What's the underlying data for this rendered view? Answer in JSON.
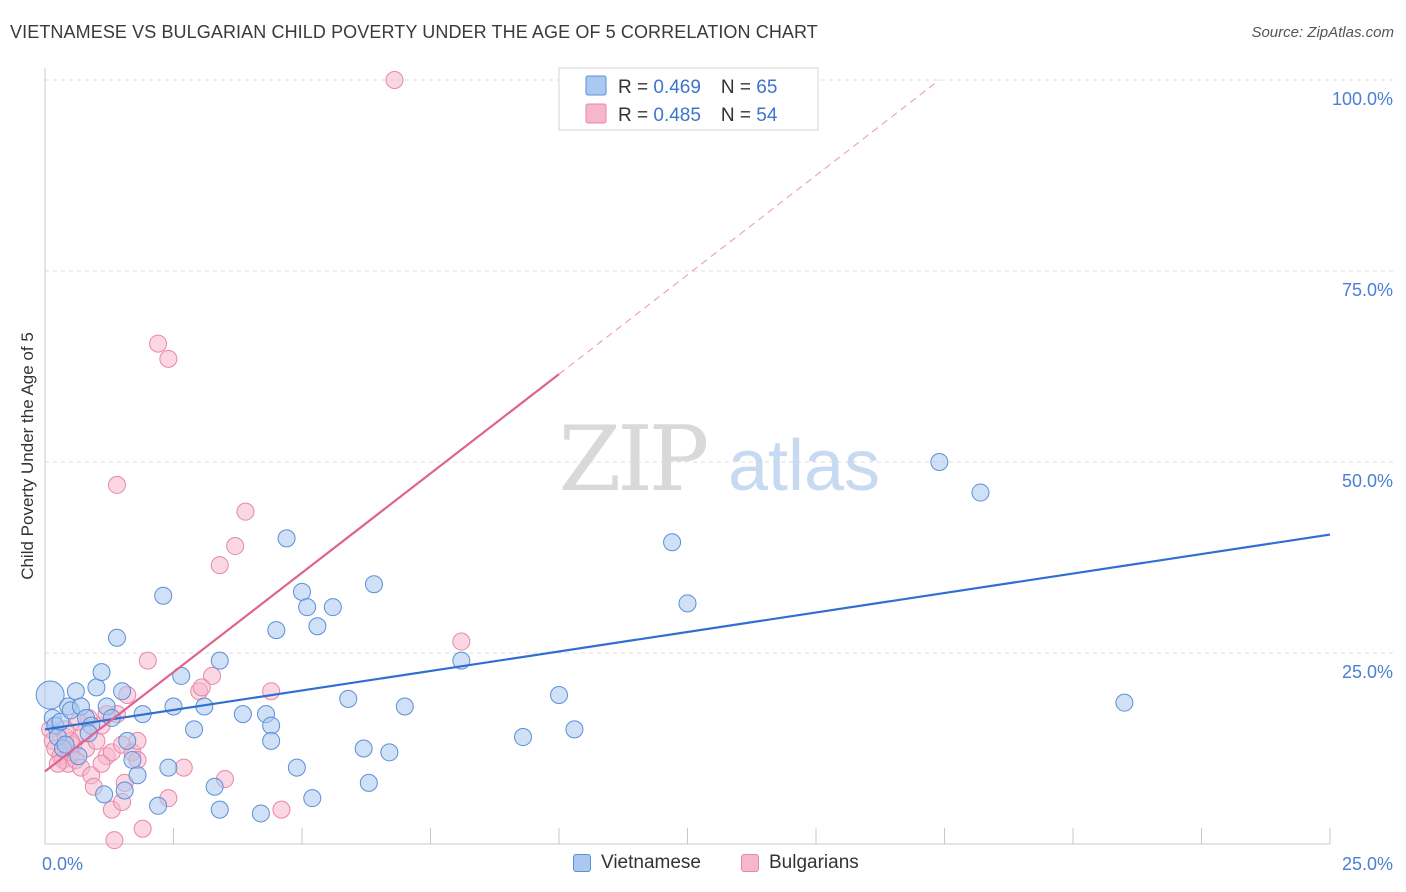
{
  "header": {
    "title": "VIETNAMESE VS BULGARIAN CHILD POVERTY UNDER THE AGE OF 5 CORRELATION CHART",
    "source": "Source: ZipAtlas.com"
  },
  "watermark": {
    "zip": "ZIP",
    "atlas": "atlas"
  },
  "colors": {
    "blue_fill": "#aac8f0",
    "blue_stroke": "#5b8fd6",
    "blue_line": "#2f6fd1",
    "pink_fill": "#f6b7cc",
    "pink_stroke": "#e887a7",
    "pink_line": "#e0628e",
    "tick_text": "#4a7fd4",
    "grid": "#dcdcdc"
  },
  "legend": {
    "rows": [
      {
        "r_label": "R = ",
        "r_value": "0.469",
        "n_label": "N = ",
        "n_value": "65"
      },
      {
        "r_label": "R = ",
        "r_value": "0.485",
        "n_label": "N = ",
        "n_value": "54"
      }
    ]
  },
  "bottom_legend": {
    "vietnamese": "Vietnamese",
    "bulgarians": "Bulgarians"
  },
  "chart_data": {
    "type": "scatter",
    "title": "VIETNAMESE VS BULGARIAN CHILD POVERTY UNDER THE AGE OF 5 CORRELATION CHART",
    "xlabel": "",
    "ylabel": "Child Poverty Under the Age of 5",
    "xlim": [
      0,
      25
    ],
    "ylim": [
      0,
      100
    ],
    "x_tick_labels": [
      "0.0%",
      "25.0%"
    ],
    "y_tick_labels": [
      "100.0%",
      "75.0%",
      "50.0%",
      "25.0%"
    ],
    "y_ticks": [
      100,
      75,
      50,
      25
    ],
    "grid": true,
    "legend_position": "top-center",
    "series": [
      {
        "name": "Vietnamese",
        "color": "#5b8fd6",
        "R": 0.469,
        "N": 65,
        "trend": {
          "x": [
            0,
            25
          ],
          "y": [
            15,
            40.5
          ]
        },
        "points": [
          [
            0.1,
            19.5
          ],
          [
            0.15,
            16.5
          ],
          [
            0.2,
            15.5
          ],
          [
            0.25,
            14.0
          ],
          [
            0.3,
            16.0
          ],
          [
            0.35,
            12.5
          ],
          [
            0.4,
            13.0
          ],
          [
            0.45,
            18.0
          ],
          [
            0.5,
            17.5
          ],
          [
            0.6,
            20.0
          ],
          [
            0.7,
            18.0
          ],
          [
            0.8,
            16.5
          ],
          [
            0.9,
            15.5
          ],
          [
            1.0,
            20.5
          ],
          [
            1.1,
            22.5
          ],
          [
            1.2,
            18.0
          ],
          [
            1.3,
            16.5
          ],
          [
            1.4,
            27.0
          ],
          [
            1.5,
            20.0
          ],
          [
            1.6,
            13.5
          ],
          [
            1.7,
            11.0
          ],
          [
            1.8,
            9.0
          ],
          [
            1.9,
            17.0
          ],
          [
            2.3,
            32.5
          ],
          [
            2.5,
            18.0
          ],
          [
            2.65,
            22.0
          ],
          [
            2.9,
            15.0
          ],
          [
            3.1,
            18.0
          ],
          [
            3.4,
            24.0
          ],
          [
            3.85,
            17.0
          ],
          [
            4.3,
            17.0
          ],
          [
            4.4,
            15.5
          ],
          [
            4.5,
            28.0
          ],
          [
            4.7,
            40.0
          ],
          [
            4.9,
            10.0
          ],
          [
            5.0,
            33.0
          ],
          [
            5.1,
            31.0
          ],
          [
            5.3,
            28.5
          ],
          [
            5.6,
            31.0
          ],
          [
            5.9,
            19.0
          ],
          [
            6.4,
            34.0
          ],
          [
            6.2,
            12.5
          ],
          [
            6.7,
            12.0
          ],
          [
            6.3,
            8.0
          ],
          [
            7.0,
            18.0
          ],
          [
            8.1,
            24.0
          ],
          [
            9.3,
            14.0
          ],
          [
            10.0,
            19.5
          ],
          [
            10.3,
            15.0
          ],
          [
            12.2,
            39.5
          ],
          [
            12.5,
            31.5
          ],
          [
            17.4,
            50.0
          ],
          [
            18.2,
            46.0
          ],
          [
            21.0,
            18.5
          ],
          [
            0.65,
            11.5
          ],
          [
            1.15,
            6.5
          ],
          [
            2.2,
            5.0
          ],
          [
            3.3,
            7.5
          ],
          [
            3.4,
            4.5
          ],
          [
            4.2,
            4.0
          ],
          [
            5.2,
            6.0
          ],
          [
            1.55,
            7.0
          ],
          [
            4.4,
            13.5
          ],
          [
            2.4,
            10.0
          ],
          [
            0.85,
            14.5
          ]
        ]
      },
      {
        "name": "Bulgarians",
        "color": "#e887a7",
        "R": 0.485,
        "N": 54,
        "trend": {
          "x": [
            0,
            10
          ],
          "y": [
            9.5,
            61.5
          ]
        },
        "trend_dashed": {
          "x": [
            10,
            17.4
          ],
          "y": [
            61.5,
            100
          ]
        },
        "points": [
          [
            0.1,
            15.0
          ],
          [
            0.15,
            13.5
          ],
          [
            0.2,
            12.5
          ],
          [
            0.3,
            11.5
          ],
          [
            0.35,
            11.0
          ],
          [
            0.4,
            14.0
          ],
          [
            0.45,
            10.5
          ],
          [
            0.5,
            12.0
          ],
          [
            0.55,
            13.0
          ],
          [
            0.6,
            11.0
          ],
          [
            0.7,
            10.0
          ],
          [
            0.75,
            14.5
          ],
          [
            0.8,
            12.5
          ],
          [
            0.85,
            16.5
          ],
          [
            0.9,
            9.0
          ],
          [
            1.0,
            13.5
          ],
          [
            1.1,
            15.5
          ],
          [
            1.2,
            11.5
          ],
          [
            1.3,
            12.0
          ],
          [
            1.4,
            17.0
          ],
          [
            1.5,
            13.0
          ],
          [
            1.6,
            19.5
          ],
          [
            1.7,
            12.0
          ],
          [
            1.8,
            11.0
          ],
          [
            1.4,
            47.0
          ],
          [
            2.2,
            65.5
          ],
          [
            2.4,
            63.5
          ],
          [
            2.0,
            24.0
          ],
          [
            2.7,
            10.0
          ],
          [
            3.0,
            20.0
          ],
          [
            3.25,
            22.0
          ],
          [
            3.4,
            36.5
          ],
          [
            3.5,
            8.5
          ],
          [
            3.7,
            39.0
          ],
          [
            3.9,
            43.5
          ],
          [
            4.4,
            20.0
          ],
          [
            4.6,
            4.5
          ],
          [
            8.1,
            26.5
          ],
          [
            6.8,
            100.0
          ],
          [
            1.3,
            4.5
          ],
          [
            1.5,
            5.5
          ],
          [
            1.9,
            2.0
          ],
          [
            1.35,
            0.5
          ],
          [
            2.4,
            6.0
          ],
          [
            1.1,
            10.5
          ],
          [
            0.95,
            7.5
          ],
          [
            1.55,
            8.0
          ],
          [
            0.65,
            16.0
          ],
          [
            0.25,
            10.5
          ],
          [
            0.5,
            13.5
          ],
          [
            3.05,
            20.5
          ],
          [
            1.8,
            13.5
          ],
          [
            0.4,
            15.0
          ],
          [
            1.2,
            17.0
          ]
        ]
      }
    ]
  }
}
